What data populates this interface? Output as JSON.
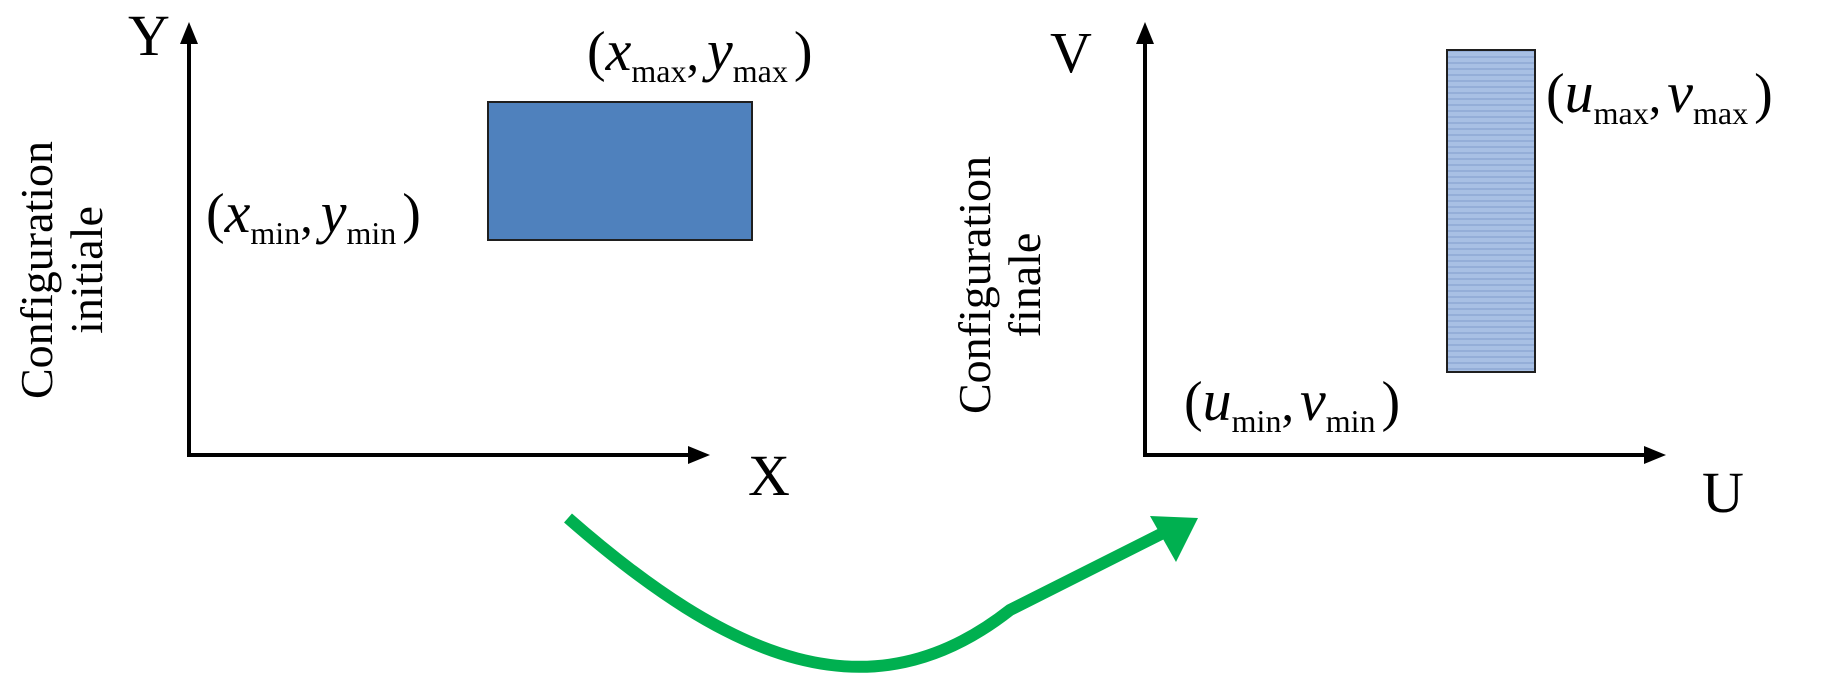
{
  "colors": {
    "initial_rect_fill": "#4f81bd",
    "initial_rect_stroke": "#1f1f1f",
    "final_rect_fill": "#a8c0e4",
    "final_rect_lines": "#7f9ccb",
    "final_rect_stroke": "#1f1f1f",
    "arrow": "#00b050",
    "axes": "#000000"
  },
  "initial": {
    "side_label_line1": "Configuration",
    "side_label_line2": "initiale",
    "x_axis_letter": "X",
    "y_axis_letter": "Y",
    "min_corner": {
      "var1": "x",
      "sub1": "min",
      "var2": "y",
      "sub2": "min"
    },
    "max_corner": {
      "var1": "x",
      "sub1": "max",
      "var2": "y",
      "sub2": "max"
    }
  },
  "final": {
    "side_label_line1": "Configuration",
    "side_label_line2": "finale",
    "x_axis_letter": "U",
    "y_axis_letter": "V",
    "min_corner": {
      "var1": "u",
      "sub1": "min",
      "var2": "v",
      "sub2": "min"
    },
    "max_corner": {
      "var1": "u",
      "sub1": "max",
      "var2": "v",
      "sub2": "max"
    }
  },
  "punctuation": {
    "open_paren": "(",
    "close_paren": ")",
    "comma": ","
  }
}
